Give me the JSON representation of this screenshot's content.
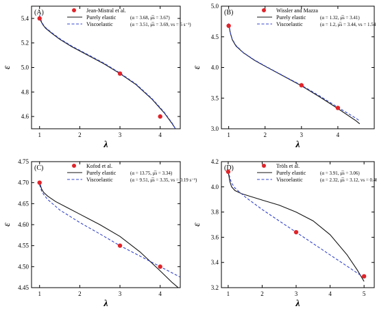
{
  "chart_data": [
    {
      "panel": "(A)",
      "type": "line",
      "xlabel": "λ",
      "ylabel": "ε",
      "xlim": [
        0.8,
        4.5
      ],
      "ylim": [
        4.5,
        5.5
      ],
      "xticks": [
        1,
        2,
        3,
        4
      ],
      "yticks": [
        4.6,
        4.8,
        5.0,
        5.2,
        5.4
      ],
      "ytick_labels": [
        "4.6",
        "4.8",
        "5.0",
        "5.2",
        "5.4"
      ],
      "grid": false,
      "legend_position": "top-right",
      "legend": [
        {
          "label": "Jean-Mistral et al.",
          "param": "",
          "kind": "markers"
        },
        {
          "label": "Purely elastic",
          "param": "(α = 3.68, μ̅s = 3.67)",
          "kind": "solid"
        },
        {
          "label": "Viscoelastic",
          "param": "(α = 3.51, μ̅s = 3.69, vs = 5 s⁻¹)",
          "kind": "dashed"
        }
      ],
      "points": {
        "x": [
          1,
          3,
          4
        ],
        "y": [
          5.4,
          4.95,
          4.6
        ]
      },
      "series": [
        {
          "style": "solid",
          "x": [
            1.0,
            1.03,
            1.08,
            1.15,
            1.3,
            1.5,
            1.8,
            2.2,
            2.6,
            3.0,
            3.4,
            3.8,
            4.1,
            4.3,
            4.38
          ],
          "y": [
            5.42,
            5.38,
            5.35,
            5.32,
            5.28,
            5.23,
            5.17,
            5.1,
            5.03,
            4.95,
            4.86,
            4.74,
            4.63,
            4.54,
            4.5
          ]
        },
        {
          "style": "dashed",
          "x": [
            1.0,
            1.03,
            1.08,
            1.15,
            1.3,
            1.5,
            1.8,
            2.2,
            2.6,
            3.0,
            3.4,
            3.8,
            4.1,
            4.3,
            4.38
          ],
          "y": [
            5.43,
            5.39,
            5.355,
            5.325,
            5.285,
            5.235,
            5.175,
            5.105,
            5.035,
            4.955,
            4.865,
            4.745,
            4.635,
            4.545,
            4.5
          ]
        }
      ]
    },
    {
      "panel": "(B)",
      "type": "line",
      "xlabel": "λ",
      "ylabel": "ε",
      "xlim": [
        0.8,
        5.0
      ],
      "ylim": [
        3.0,
        5.0
      ],
      "xticks": [
        1,
        2,
        3,
        4
      ],
      "yticks": [
        3.0,
        3.5,
        4.0,
        4.5,
        5.0
      ],
      "ytick_labels": [
        "3.0",
        "3.5",
        "4.0",
        "4.5",
        "5.0"
      ],
      "grid": false,
      "legend_position": "top-right",
      "legend": [
        {
          "label": "Wissler and Mazza",
          "param": "",
          "kind": "markers"
        },
        {
          "label": "Purely elastic",
          "param": "(α = 1.32, μ̅s = 3.41)",
          "kind": "solid"
        },
        {
          "label": "Viscoelastic",
          "param": "(α = 1.2, μ̅s = 3.44, vs = 1.54 s⁻¹)",
          "kind": "dashed"
        }
      ],
      "points": {
        "x": [
          1,
          3,
          4
        ],
        "y": [
          4.68,
          3.71,
          3.34
        ]
      },
      "series": [
        {
          "style": "solid",
          "x": [
            1.0,
            1.05,
            1.1,
            1.2,
            1.4,
            1.7,
            2.0,
            2.5,
            3.0,
            3.5,
            4.0,
            4.5,
            4.6
          ],
          "y": [
            4.7,
            4.55,
            4.45,
            4.35,
            4.24,
            4.12,
            4.02,
            3.86,
            3.7,
            3.52,
            3.33,
            3.13,
            3.08
          ]
        },
        {
          "style": "dashed",
          "x": [
            1.0,
            1.05,
            1.1,
            1.2,
            1.4,
            1.7,
            2.0,
            2.5,
            3.0,
            3.5,
            4.0,
            4.5,
            4.6
          ],
          "y": [
            4.72,
            4.56,
            4.46,
            4.36,
            4.245,
            4.125,
            4.025,
            3.865,
            3.71,
            3.535,
            3.35,
            3.17,
            3.13
          ]
        }
      ]
    },
    {
      "panel": "(C)",
      "type": "line",
      "xlabel": "λ",
      "ylabel": "ε",
      "xlim": [
        0.8,
        4.5
      ],
      "ylim": [
        4.45,
        4.75
      ],
      "xticks": [
        1,
        2,
        3,
        4
      ],
      "yticks": [
        4.45,
        4.5,
        4.55,
        4.6,
        4.65,
        4.7,
        4.75
      ],
      "ytick_labels": [
        "4.45",
        "4.50",
        "4.55",
        "4.60",
        "4.65",
        "4.70",
        "4.75"
      ],
      "grid": false,
      "legend_position": "top-right",
      "legend": [
        {
          "label": "Kofod et al.",
          "param": "",
          "kind": "markers"
        },
        {
          "label": "Purely elastic",
          "param": "(α = 13.75, μ̅s = 3.34)",
          "kind": "solid"
        },
        {
          "label": "Viscoelastic",
          "param": "(α = 9.51, μ̅s = 3.35, vs = 0.19 s⁻¹)",
          "kind": "dashed"
        }
      ],
      "points": {
        "x": [
          1,
          3,
          4
        ],
        "y": [
          4.7,
          4.55,
          4.5
        ]
      },
      "series": [
        {
          "style": "solid",
          "x": [
            1.0,
            1.05,
            1.1,
            1.2,
            1.4,
            1.7,
            2.0,
            2.5,
            3.0,
            3.5,
            4.0,
            4.3,
            4.45
          ],
          "y": [
            4.7,
            4.685,
            4.677,
            4.668,
            4.655,
            4.64,
            4.625,
            4.6,
            4.572,
            4.535,
            4.49,
            4.462,
            4.45
          ]
        },
        {
          "style": "dashed",
          "x": [
            1.0,
            1.05,
            1.1,
            1.2,
            1.5,
            2.0,
            2.5,
            3.0,
            3.5,
            4.0,
            4.5
          ],
          "y": [
            4.695,
            4.68,
            4.672,
            4.66,
            4.635,
            4.605,
            4.578,
            4.55,
            4.525,
            4.5,
            4.475
          ]
        }
      ]
    },
    {
      "panel": "(D)",
      "type": "line",
      "xlabel": "λ",
      "ylabel": "ε",
      "xlim": [
        0.8,
        5.3
      ],
      "ylim": [
        3.2,
        4.2
      ],
      "xticks": [
        1,
        2,
        3,
        4,
        5
      ],
      "yticks": [
        3.2,
        3.4,
        3.6,
        3.8,
        4.0,
        4.2
      ],
      "ytick_labels": [
        "3.2",
        "3.4",
        "3.6",
        "3.8",
        "4.0",
        "4.2"
      ],
      "grid": false,
      "legend_position": "top-right",
      "legend": [
        {
          "label": "Tröls et al.",
          "param": "",
          "kind": "markers"
        },
        {
          "label": "Purely elastic",
          "param": "(α = 3.91, μ̅s = 3.06)",
          "kind": "solid"
        },
        {
          "label": "Viscoelastic",
          "param": "(α = 2.32, μ̅s = 3.12, vs = 0.46 s⁻¹)",
          "kind": "dashed"
        }
      ],
      "points": {
        "x": [
          1,
          3,
          5
        ],
        "y": [
          4.12,
          3.64,
          3.29
        ]
      },
      "series": [
        {
          "style": "solid",
          "x": [
            1.0,
            1.05,
            1.1,
            1.2,
            1.4,
            1.7,
            2.0,
            2.5,
            3.0,
            3.5,
            4.0,
            4.5,
            4.8,
            5.0
          ],
          "y": [
            4.12,
            4.04,
            4.0,
            3.97,
            3.945,
            3.92,
            3.895,
            3.855,
            3.8,
            3.73,
            3.62,
            3.46,
            3.34,
            3.25
          ]
        },
        {
          "style": "dashed",
          "x": [
            1.0,
            1.05,
            1.1,
            1.2,
            1.5,
            2.0,
            2.5,
            3.0,
            3.5,
            4.0,
            4.5,
            5.0
          ],
          "y": [
            4.13,
            4.07,
            4.03,
            3.99,
            3.92,
            3.82,
            3.73,
            3.64,
            3.55,
            3.46,
            3.37,
            3.28
          ]
        }
      ]
    }
  ]
}
